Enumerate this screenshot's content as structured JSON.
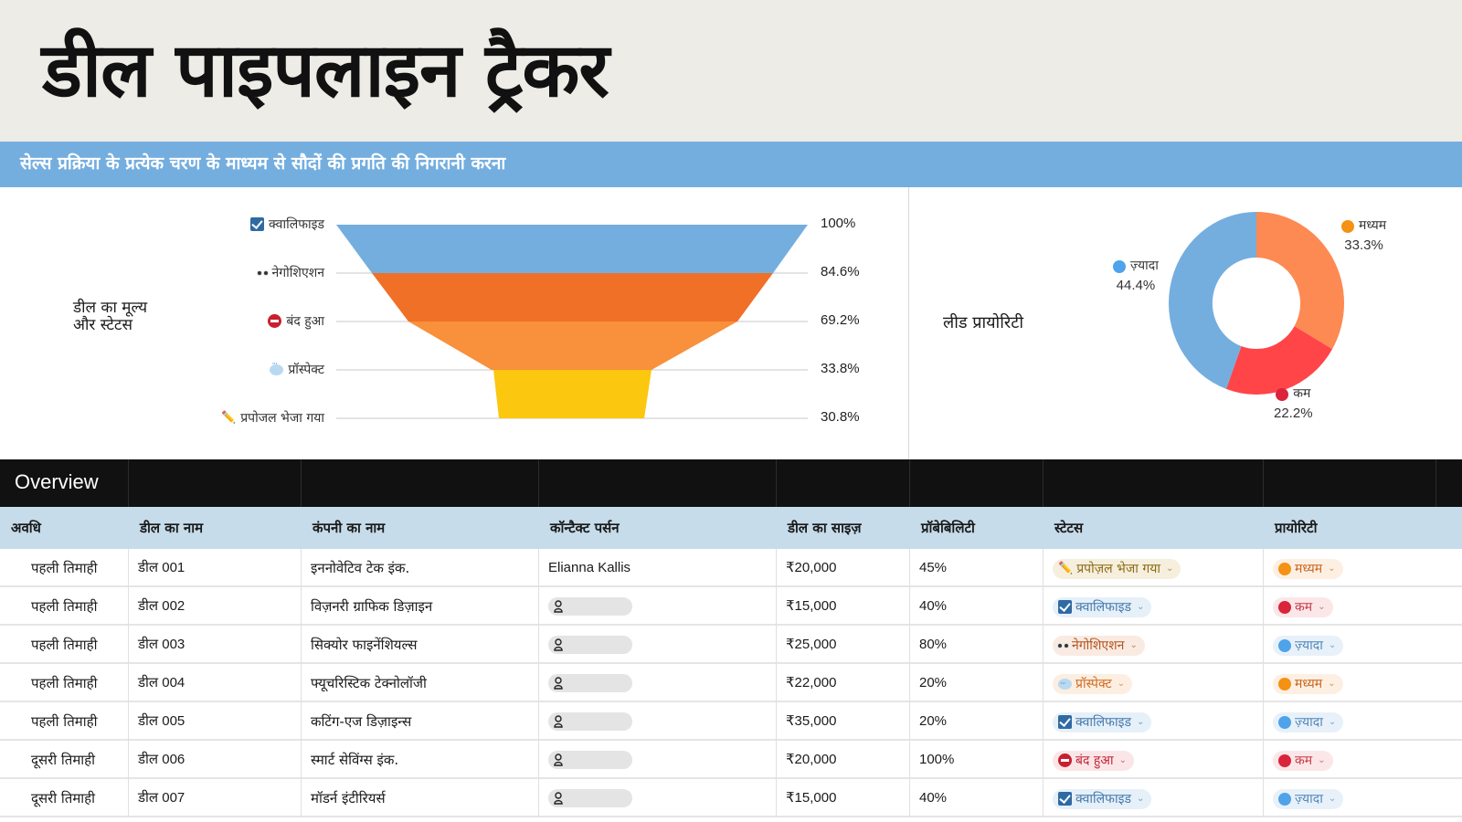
{
  "header": {
    "title": "डील पाइपलाइन ट्रैकर",
    "subtitle": "सेल्स प्रक्रिया के प्रत्येक चरण के माध्यम से सौदों की प्रगति की निगरानी करना"
  },
  "funnel": {
    "caption_line1": "डील का मूल्य",
    "caption_line2": "और स्टेटस",
    "stages": [
      {
        "label": "क्वालिफाइड",
        "icon": "checkbox-icon",
        "pct": "100%"
      },
      {
        "label": "नेगोशिएशन",
        "icon": "eyes-icon",
        "pct": "84.6%"
      },
      {
        "label": "बंद हुआ",
        "icon": "no-entry-icon",
        "pct": "69.2%"
      },
      {
        "label": "प्रॉस्पेक्ट",
        "icon": "speech-bubble-icon",
        "pct": "33.8%"
      },
      {
        "label": "प्रपोजल भेजा गया",
        "icon": "pencil-icon",
        "pct": "30.8%"
      }
    ]
  },
  "donut": {
    "caption": "लीड प्रायोरिटी",
    "slices": [
      {
        "label": "मध्यम",
        "pct": "33.3%"
      },
      {
        "label": "कम",
        "pct": "22.2%"
      },
      {
        "label": "ज़्यादा",
        "pct": "44.4%"
      }
    ]
  },
  "chart_data": [
    {
      "type": "funnel",
      "title": "डील का मूल्य और स्टेटस",
      "categories": [
        "क्वालिफाइड",
        "नेगोशिएशन",
        "बंद हुआ",
        "प्रॉस्पेक्ट",
        "प्रपोजल भेजा गया"
      ],
      "values": [
        100,
        84.6,
        69.2,
        33.8,
        30.8
      ],
      "unit": "%",
      "colors": [
        "#74aedf",
        "#f07027",
        "#f8903c",
        "#fcc70f",
        "#fcc70f"
      ],
      "grid": true
    },
    {
      "type": "pie",
      "subtype": "donut",
      "title": "लीड प्रायोरिटी",
      "categories": [
        "मध्यम",
        "कम",
        "ज़्यादा"
      ],
      "values": [
        33.3,
        22.2,
        44.4
      ],
      "unit": "%",
      "colors": [
        "#fd8a52",
        "#ff4548",
        "#74aedf"
      ],
      "legend_colors": [
        "#f59113",
        "#d9243b",
        "#4ea3ea"
      ]
    }
  ],
  "overview": {
    "label": "Overview"
  },
  "table": {
    "columns": [
      "अवधि",
      "डील का नाम",
      "कंपनी का नाम",
      "कॉन्टैक्ट पर्सन",
      "डील का साइज़",
      "प्रॉबेबिलिटी",
      "स्टेटस",
      "प्रायोरिटी"
    ],
    "rows": [
      {
        "period": "पहली तिमाही",
        "deal": "डील 001",
        "company": "इननोवेटिव टेक इंक.",
        "contact": "Elianna Kallis",
        "size": "₹20,000",
        "probability": "45%",
        "status": "प्रपोज़ल भेजा गया",
        "status_key": "proposal",
        "priority": "मध्यम",
        "priority_key": "medium"
      },
      {
        "period": "पहली तिमाही",
        "deal": "डील 002",
        "company": "विज़नरी ग्राफिक डिज़ाइन",
        "contact": "",
        "size": "₹15,000",
        "probability": "40%",
        "status": "क्वालिफाइड",
        "status_key": "qualified",
        "priority": "कम",
        "priority_key": "low"
      },
      {
        "period": "पहली तिमाही",
        "deal": "डील 003",
        "company": "सिक्योर फाइनेंशियल्स",
        "contact": "",
        "size": "₹25,000",
        "probability": "80%",
        "status": "नेगोशिएशन",
        "status_key": "negotiation",
        "priority": "ज़्यादा",
        "priority_key": "high"
      },
      {
        "period": "पहली तिमाही",
        "deal": "डील 004",
        "company": "फ्यूचरिस्टिक टेक्नोलॉजी",
        "contact": "",
        "size": "₹22,000",
        "probability": "20%",
        "status": "प्रॉस्पेक्ट",
        "status_key": "prospect",
        "priority": "मध्यम",
        "priority_key": "medium"
      },
      {
        "period": "पहली तिमाही",
        "deal": "डील 005",
        "company": "कटिंग-एज डिज़ाइन्स",
        "contact": "",
        "size": "₹35,000",
        "probability": "20%",
        "status": "क्वालिफाइड",
        "status_key": "qualified",
        "priority": "ज़्यादा",
        "priority_key": "high"
      },
      {
        "period": "दूसरी तिमाही",
        "deal": "डील 006",
        "company": "स्मार्ट सेविंग्स इंक.",
        "contact": "",
        "size": "₹20,000",
        "probability": "100%",
        "status": "बंद हुआ",
        "status_key": "closed",
        "priority": "कम",
        "priority_key": "low"
      },
      {
        "period": "दूसरी तिमाही",
        "deal": "डील 007",
        "company": "मॉडर्न इंटीरियर्स",
        "contact": "",
        "size": "₹15,000",
        "probability": "40%",
        "status": "क्वालिफाइड",
        "status_key": "qualified",
        "priority": "ज़्यादा",
        "priority_key": "high"
      }
    ]
  },
  "colors": {
    "title_bg": "#edece6",
    "subtitle_bg": "#74aedf",
    "overview_bg": "#111111",
    "table_head_bg": "#c6dcea"
  }
}
